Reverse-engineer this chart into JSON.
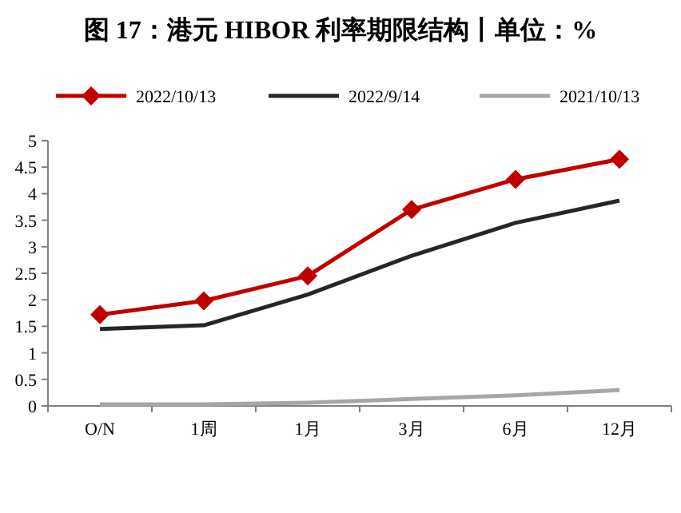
{
  "chart_data": {
    "type": "line",
    "title": "图 17：港元 HIBOR 利率期限结构丨单位：%",
    "categories": [
      "O/N",
      "1周",
      "1月",
      "3月",
      "6月",
      "12月"
    ],
    "series": [
      {
        "name": "2022/10/13",
        "color": "#c00000",
        "marker": "diamond",
        "values": [
          1.72,
          1.98,
          2.45,
          3.7,
          4.27,
          4.65
        ]
      },
      {
        "name": "2022/9/14",
        "color": "#262626",
        "marker": "none",
        "values": [
          1.45,
          1.52,
          2.1,
          2.83,
          3.45,
          3.87
        ]
      },
      {
        "name": "2021/10/13",
        "color": "#a6a6a6",
        "marker": "none",
        "values": [
          0.03,
          0.03,
          0.06,
          0.13,
          0.2,
          0.3
        ]
      }
    ],
    "ylim": [
      0,
      5
    ],
    "yticks": [
      0,
      0.5,
      1,
      1.5,
      2,
      2.5,
      3,
      3.5,
      4,
      4.5,
      5
    ],
    "grid": false,
    "legend": "top",
    "line_style": "solid"
  }
}
